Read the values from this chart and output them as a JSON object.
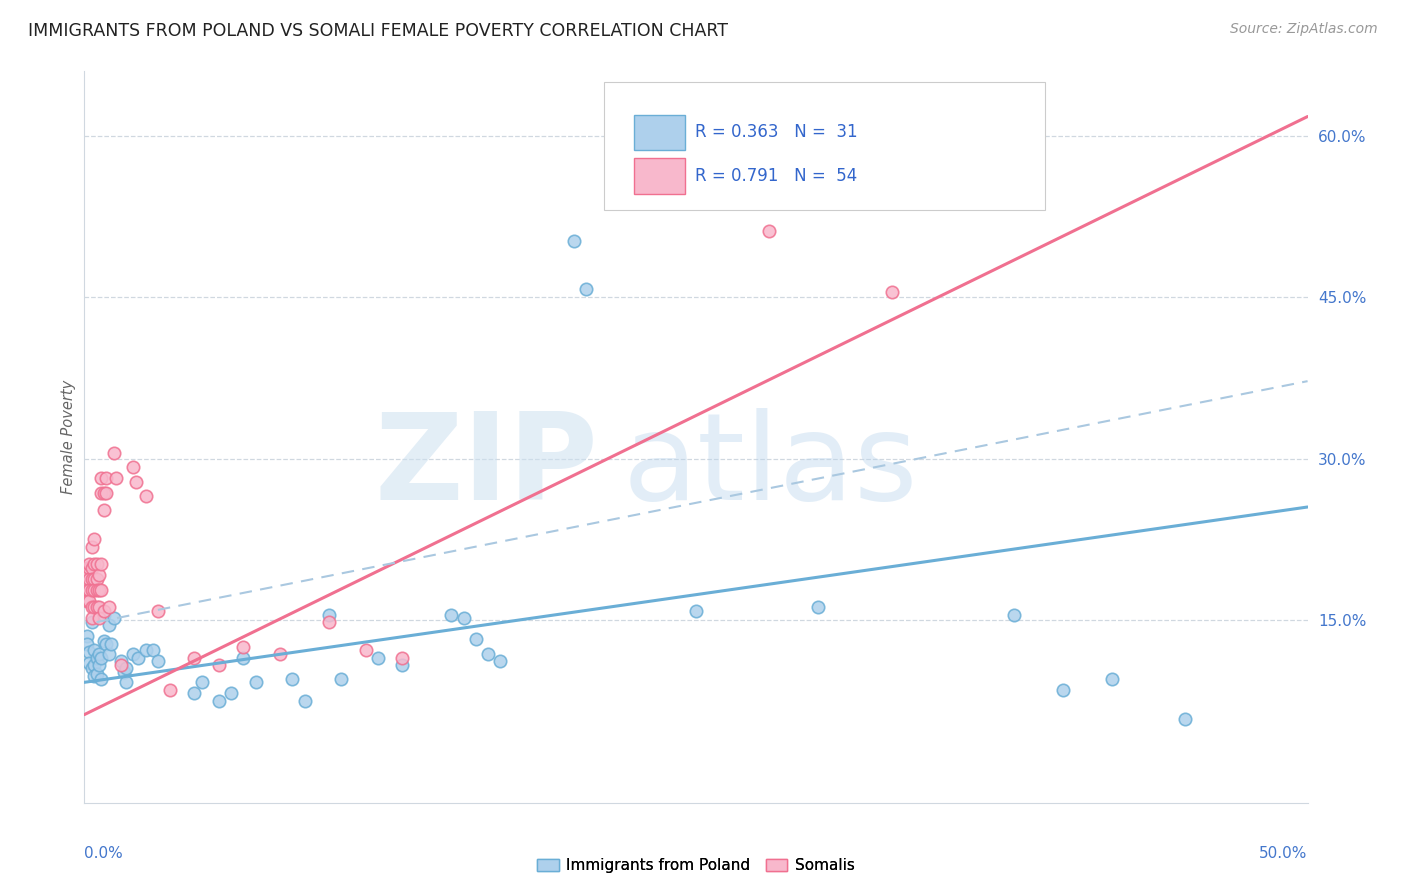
{
  "title": "IMMIGRANTS FROM POLAND VS SOMALI FEMALE POVERTY CORRELATION CHART",
  "source": "Source: ZipAtlas.com",
  "ylabel": "Female Poverty",
  "right_ytick_vals": [
    0.6,
    0.45,
    0.3,
    0.15
  ],
  "poland_color": "#6aaed6",
  "somali_color": "#f07090",
  "poland_fill": "#aed0ec",
  "somali_fill": "#f8b8cc",
  "poland_scatter": [
    [
      0.001,
      0.135
    ],
    [
      0.001,
      0.128
    ],
    [
      0.002,
      0.12
    ],
    [
      0.002,
      0.11
    ],
    [
      0.003,
      0.148
    ],
    [
      0.003,
      0.105
    ],
    [
      0.004,
      0.108
    ],
    [
      0.004,
      0.098
    ],
    [
      0.004,
      0.122
    ],
    [
      0.005,
      0.115
    ],
    [
      0.005,
      0.1
    ],
    [
      0.006,
      0.108
    ],
    [
      0.006,
      0.118
    ],
    [
      0.007,
      0.095
    ],
    [
      0.007,
      0.115
    ],
    [
      0.008,
      0.13
    ],
    [
      0.008,
      0.155
    ],
    [
      0.009,
      0.128
    ],
    [
      0.01,
      0.145
    ],
    [
      0.01,
      0.118
    ],
    [
      0.011,
      0.128
    ],
    [
      0.012,
      0.152
    ],
    [
      0.015,
      0.112
    ],
    [
      0.016,
      0.102
    ],
    [
      0.017,
      0.105
    ],
    [
      0.017,
      0.092
    ],
    [
      0.02,
      0.118
    ],
    [
      0.022,
      0.115
    ],
    [
      0.025,
      0.122
    ],
    [
      0.028,
      0.122
    ],
    [
      0.03,
      0.112
    ],
    [
      0.045,
      0.082
    ],
    [
      0.048,
      0.092
    ],
    [
      0.055,
      0.075
    ],
    [
      0.06,
      0.082
    ],
    [
      0.065,
      0.115
    ],
    [
      0.07,
      0.092
    ],
    [
      0.085,
      0.095
    ],
    [
      0.09,
      0.075
    ],
    [
      0.1,
      0.155
    ],
    [
      0.105,
      0.095
    ],
    [
      0.12,
      0.115
    ],
    [
      0.13,
      0.108
    ],
    [
      0.15,
      0.155
    ],
    [
      0.155,
      0.152
    ],
    [
      0.16,
      0.132
    ],
    [
      0.165,
      0.118
    ],
    [
      0.17,
      0.112
    ],
    [
      0.2,
      0.502
    ],
    [
      0.205,
      0.458
    ],
    [
      0.25,
      0.158
    ],
    [
      0.3,
      0.162
    ],
    [
      0.38,
      0.155
    ],
    [
      0.4,
      0.085
    ],
    [
      0.42,
      0.095
    ],
    [
      0.45,
      0.058
    ]
  ],
  "somali_scatter": [
    [
      0.001,
      0.198
    ],
    [
      0.001,
      0.192
    ],
    [
      0.001,
      0.178
    ],
    [
      0.001,
      0.168
    ],
    [
      0.002,
      0.198
    ],
    [
      0.002,
      0.188
    ],
    [
      0.002,
      0.178
    ],
    [
      0.002,
      0.168
    ],
    [
      0.002,
      0.202
    ],
    [
      0.003,
      0.218
    ],
    [
      0.003,
      0.198
    ],
    [
      0.003,
      0.188
    ],
    [
      0.003,
      0.178
    ],
    [
      0.003,
      0.162
    ],
    [
      0.003,
      0.152
    ],
    [
      0.004,
      0.225
    ],
    [
      0.004,
      0.202
    ],
    [
      0.004,
      0.188
    ],
    [
      0.004,
      0.178
    ],
    [
      0.004,
      0.162
    ],
    [
      0.005,
      0.202
    ],
    [
      0.005,
      0.188
    ],
    [
      0.005,
      0.178
    ],
    [
      0.005,
      0.162
    ],
    [
      0.006,
      0.192
    ],
    [
      0.006,
      0.178
    ],
    [
      0.006,
      0.162
    ],
    [
      0.006,
      0.152
    ],
    [
      0.007,
      0.282
    ],
    [
      0.007,
      0.268
    ],
    [
      0.007,
      0.202
    ],
    [
      0.007,
      0.178
    ],
    [
      0.008,
      0.268
    ],
    [
      0.008,
      0.252
    ],
    [
      0.008,
      0.158
    ],
    [
      0.009,
      0.282
    ],
    [
      0.009,
      0.268
    ],
    [
      0.01,
      0.162
    ],
    [
      0.012,
      0.305
    ],
    [
      0.013,
      0.282
    ],
    [
      0.015,
      0.108
    ],
    [
      0.02,
      0.292
    ],
    [
      0.021,
      0.278
    ],
    [
      0.025,
      0.265
    ],
    [
      0.03,
      0.158
    ],
    [
      0.035,
      0.085
    ],
    [
      0.045,
      0.115
    ],
    [
      0.055,
      0.108
    ],
    [
      0.065,
      0.125
    ],
    [
      0.08,
      0.118
    ],
    [
      0.1,
      0.148
    ],
    [
      0.115,
      0.122
    ],
    [
      0.13,
      0.115
    ],
    [
      0.28,
      0.512
    ],
    [
      0.33,
      0.455
    ]
  ],
  "poland_line": [
    [
      0.0,
      0.092
    ],
    [
      0.5,
      0.255
    ]
  ],
  "somali_line": [
    [
      0.0,
      0.062
    ],
    [
      0.5,
      0.618
    ]
  ],
  "dashed_line": [
    [
      0.005,
      0.148
    ],
    [
      0.5,
      0.372
    ]
  ],
  "watermark_zip": "ZIP",
  "watermark_atlas": "atlas",
  "xlim": [
    0.0,
    0.5
  ],
  "ylim": [
    -0.02,
    0.66
  ]
}
